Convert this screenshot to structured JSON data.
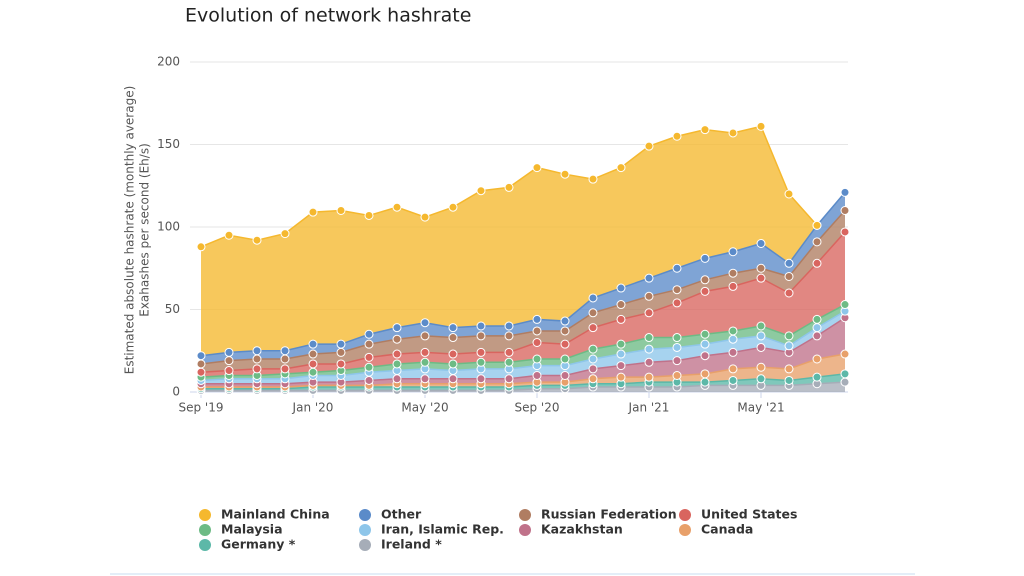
{
  "chart_data": {
    "type": "stacked-area",
    "title": "Evolution of network hashrate",
    "y_label": [
      "Estimated absolute hashrate (monthly average)",
      "Exahashes per second (Eh/s)"
    ],
    "categories": [
      "Sep '19",
      null,
      null,
      null,
      "Jan '20",
      null,
      null,
      null,
      "May '20",
      null,
      null,
      null,
      "Sep '20",
      null,
      null,
      null,
      "Jan '21",
      null,
      null,
      null,
      "May '21",
      null,
      null,
      null
    ],
    "ylim": [
      0,
      200
    ],
    "yticks": [
      0,
      50,
      100,
      150,
      200
    ],
    "grid": true,
    "series": [
      {
        "name": "Mainland China",
        "color": "#f5b82e",
        "values": [
          66,
          71,
          67,
          71,
          80,
          81,
          72,
          73,
          64,
          73,
          82,
          84,
          92,
          89,
          72,
          73,
          80,
          80,
          78,
          72,
          71,
          42,
          0,
          null
        ]
      },
      {
        "name": "Other",
        "color": "#5b8bc9",
        "values": [
          5,
          5,
          5,
          5,
          6,
          5,
          6,
          7,
          8,
          6,
          6,
          6,
          7,
          6,
          9,
          10,
          11,
          13,
          13,
          13,
          15,
          8,
          10,
          11
        ]
      },
      {
        "name": "Russian Federation",
        "color": "#b07d62",
        "values": [
          5,
          6,
          6,
          6,
          6,
          7,
          8,
          9,
          10,
          10,
          10,
          10,
          7,
          8,
          9,
          9,
          10,
          8,
          7,
          8,
          6,
          10,
          13,
          13
        ]
      },
      {
        "name": "United States",
        "color": "#d9655f",
        "values": [
          3,
          3,
          4,
          3,
          5,
          4,
          6,
          6,
          6,
          6,
          6,
          6,
          10,
          9,
          13,
          15,
          15,
          21,
          26,
          27,
          29,
          26,
          34,
          44
        ]
      },
      {
        "name": "Malaysia",
        "color": "#6dbb85",
        "values": [
          2,
          2,
          2,
          3,
          2,
          3,
          3,
          4,
          4,
          4,
          4,
          4,
          4,
          4,
          6,
          6,
          7,
          6,
          6,
          5,
          6,
          6,
          5,
          4
        ]
      },
      {
        "name": "Iran, Islamic Rep.",
        "color": "#8ec6ea",
        "values": [
          2,
          3,
          3,
          3,
          4,
          4,
          5,
          5,
          6,
          5,
          6,
          6,
          6,
          6,
          6,
          7,
          8,
          8,
          7,
          8,
          7,
          4,
          5,
          4
        ]
      },
      {
        "name": "Kazakhstan",
        "color": "#c0728a",
        "values": [
          2,
          2,
          2,
          2,
          2,
          2,
          3,
          3,
          3,
          3,
          3,
          3,
          4,
          4,
          6,
          7,
          9,
          9,
          11,
          10,
          12,
          10,
          14,
          22
        ]
      },
      {
        "name": "Canada",
        "color": "#e8a06a",
        "values": [
          1,
          1,
          1,
          1,
          1,
          1,
          1,
          2,
          2,
          2,
          2,
          2,
          2,
          2,
          3,
          4,
          3,
          4,
          5,
          7,
          7,
          7,
          11,
          12
        ]
      },
      {
        "name": "Germany *",
        "color": "#5cb8a8",
        "values": [
          1,
          1,
          1,
          1,
          2,
          2,
          2,
          2,
          2,
          2,
          2,
          2,
          2,
          2,
          2,
          2,
          3,
          3,
          2,
          3,
          4,
          3,
          4,
          5
        ]
      },
      {
        "name": "Ireland *",
        "color": "#a6adb8",
        "values": [
          1,
          1,
          1,
          1,
          1,
          1,
          1,
          1,
          1,
          1,
          1,
          1,
          2,
          2,
          3,
          3,
          3,
          3,
          4,
          4,
          4,
          4,
          5,
          6
        ]
      }
    ]
  }
}
